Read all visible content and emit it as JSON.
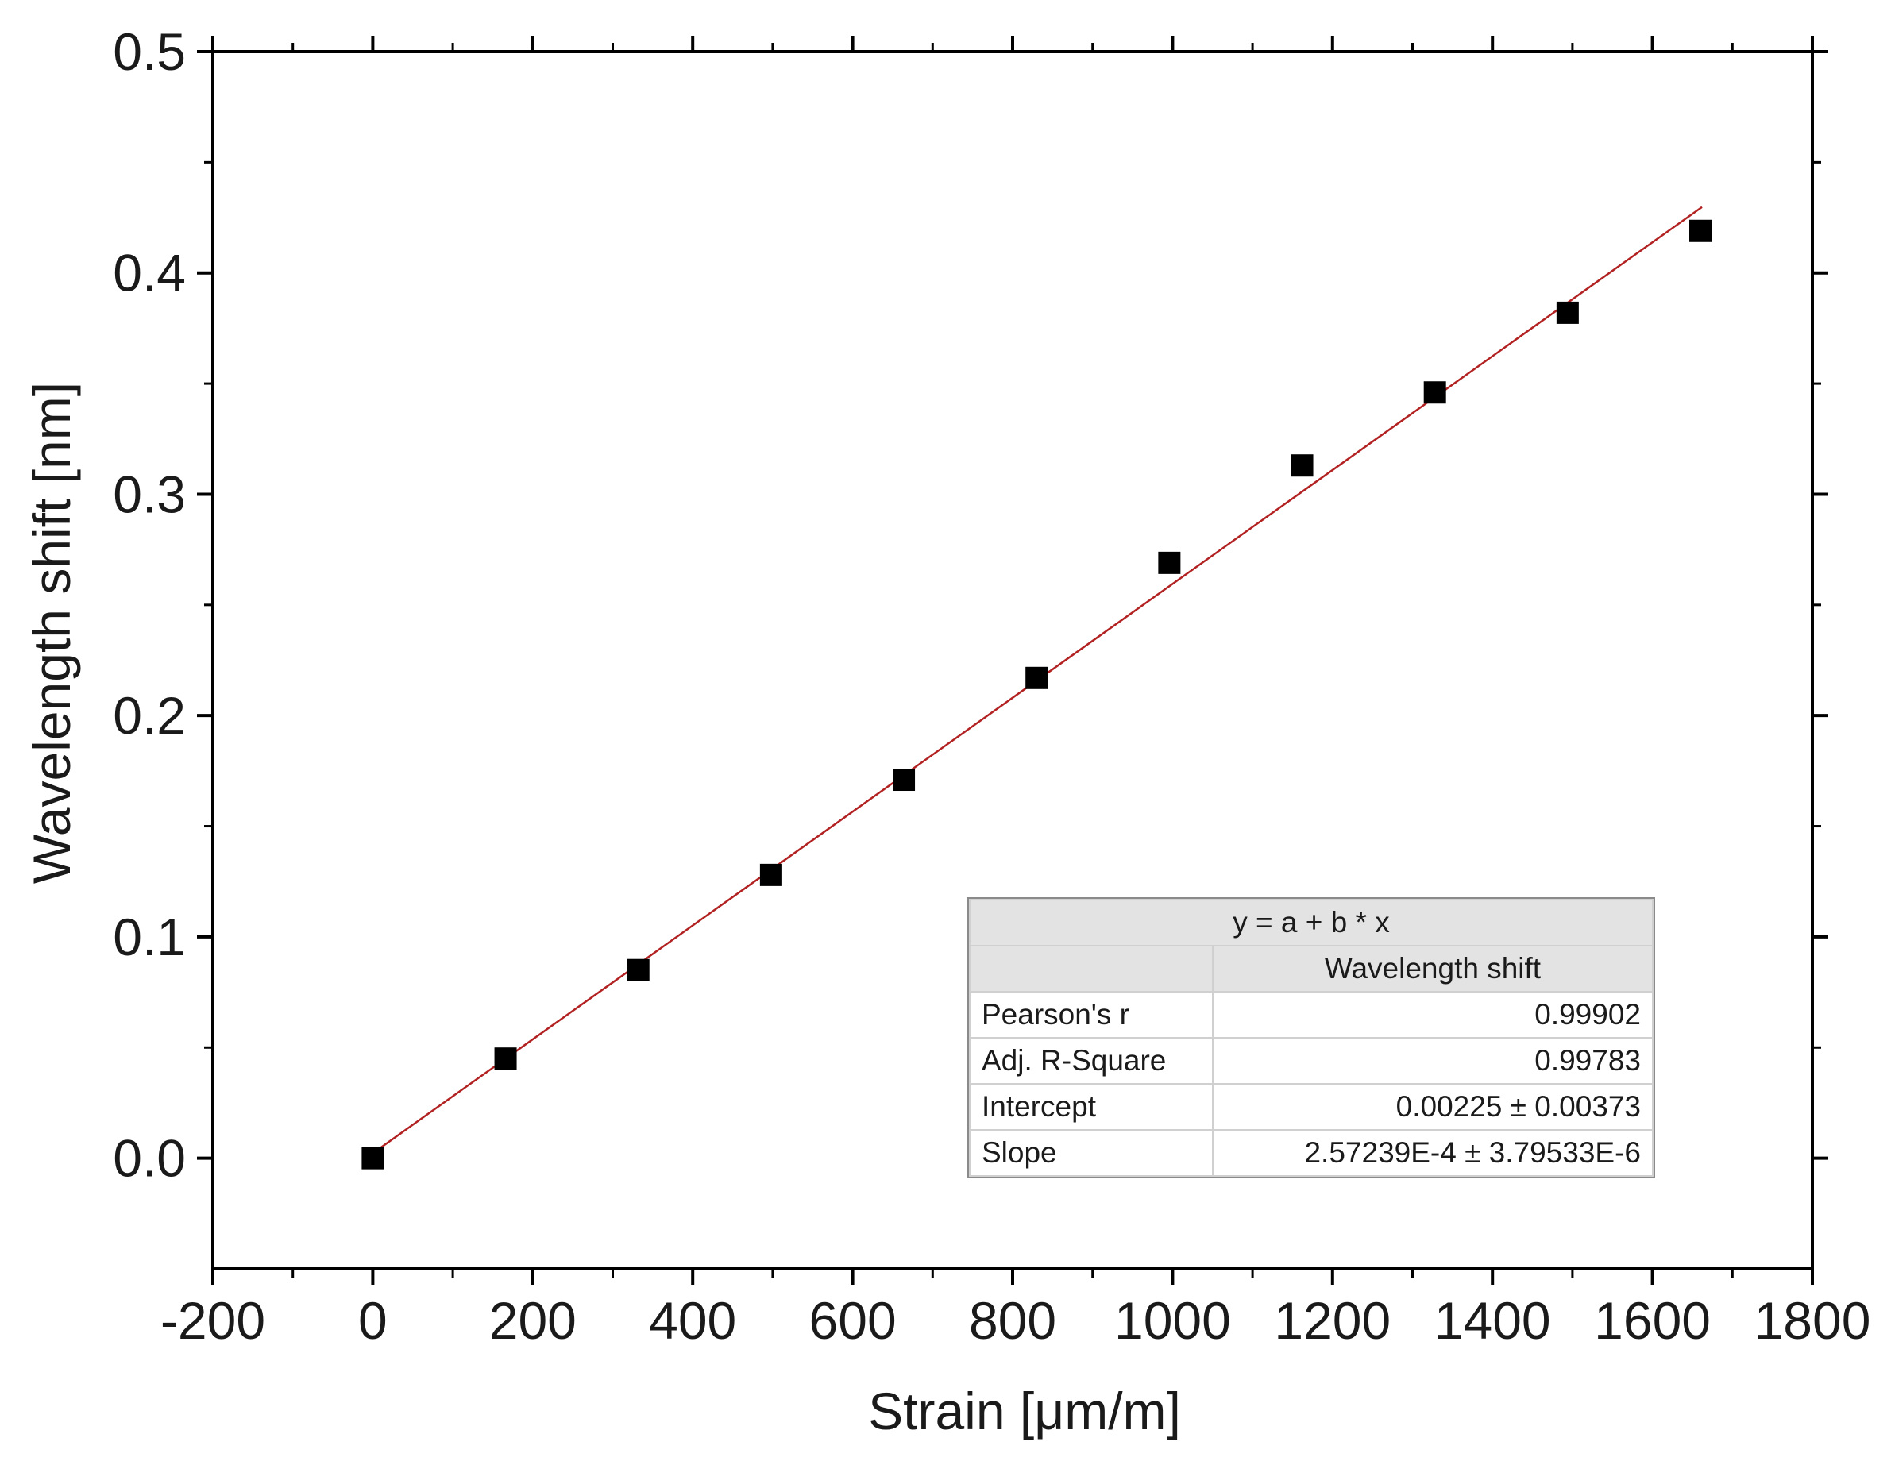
{
  "chart_data": {
    "type": "scatter",
    "xlabel": "Strain [μm/m]",
    "ylabel": "Wavelength shift [nm]",
    "xlim": [
      -200,
      1800
    ],
    "ylim": [
      -0.05,
      0.5
    ],
    "x_ticks": [
      -200,
      0,
      200,
      400,
      600,
      800,
      1000,
      1200,
      1400,
      1600,
      1800
    ],
    "x_tick_labels": [
      "-200",
      "0",
      "200",
      "400",
      "600",
      "800",
      "1000",
      "1200",
      "1400",
      "1600",
      "1800"
    ],
    "y_ticks": [
      0.0,
      0.1,
      0.2,
      0.3,
      0.4,
      0.5
    ],
    "y_tick_labels": [
      "0.0",
      "0.1",
      "0.2",
      "0.3",
      "0.4",
      "0.5"
    ],
    "series": [
      {
        "marker": "square",
        "color": "#000000",
        "x": [
          0,
          166,
          332,
          498,
          664,
          830,
          996,
          1162,
          1328,
          1494,
          1660
        ],
        "y": [
          0.0,
          0.045,
          0.085,
          0.128,
          0.171,
          0.217,
          0.269,
          0.313,
          0.346,
          0.382,
          0.419
        ]
      }
    ],
    "fit_line": {
      "color": "#b22222",
      "intercept": 0.00225,
      "slope": 0.000257239,
      "x_range": [
        0,
        1660
      ]
    },
    "grid": false
  },
  "fit_table": {
    "equation": "y = a + b * x",
    "column_header": "Wavelength shift",
    "rows": [
      {
        "label": "Pearson's r",
        "value": "0.99902"
      },
      {
        "label": "Adj. R-Square",
        "value": "0.99783"
      },
      {
        "label": "Intercept",
        "value": "0.00225 ± 0.00373"
      },
      {
        "label": "Slope",
        "value": "2.57239E-4 ± 3.79533E-6"
      }
    ]
  }
}
